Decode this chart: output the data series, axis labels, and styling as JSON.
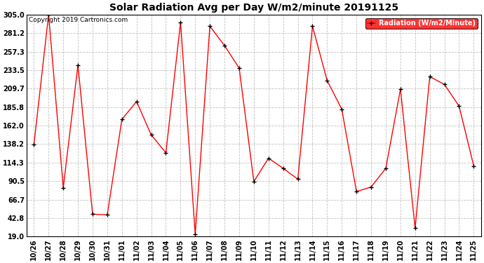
{
  "title": "Solar Radiation Avg per Day W/m2/minute 20191125",
  "copyright": "Copyright 2019 Cartronics.com",
  "legend_label": "Radiation (W/m2/Minute)",
  "ylim": [
    19.0,
    305.0
  ],
  "yticks": [
    19.0,
    42.8,
    66.7,
    90.5,
    114.3,
    138.2,
    162.0,
    185.8,
    209.7,
    233.5,
    257.3,
    281.2,
    305.0
  ],
  "labels": [
    "10/26",
    "10/27",
    "10/28",
    "10/29",
    "10/30",
    "10/31",
    "11/01",
    "11/02",
    "11/03",
    "11/04",
    "11/05",
    "11/06",
    "11/07",
    "11/08",
    "11/09",
    "11/10",
    "11/11",
    "11/12",
    "11/13",
    "11/14",
    "11/15",
    "11/16",
    "11/17",
    "11/18",
    "11/19",
    "11/20",
    "11/21",
    "11/22",
    "11/23",
    "11/24",
    "11/25"
  ],
  "values": [
    138,
    305,
    82,
    240,
    48,
    47,
    170,
    193,
    150,
    127,
    295,
    22,
    290,
    265,
    236,
    90,
    120,
    107,
    93,
    290,
    220,
    183,
    77,
    83,
    107,
    209,
    30,
    225,
    215,
    187,
    110
  ],
  "line_color": "red",
  "marker": "+",
  "marker_color": "black",
  "bg_color": "white",
  "grid_color": "#bbbbbb",
  "legend_bg": "red",
  "legend_fg": "white",
  "title_fontsize": 10,
  "tick_fontsize": 7,
  "copyright_fontsize": 6.5
}
